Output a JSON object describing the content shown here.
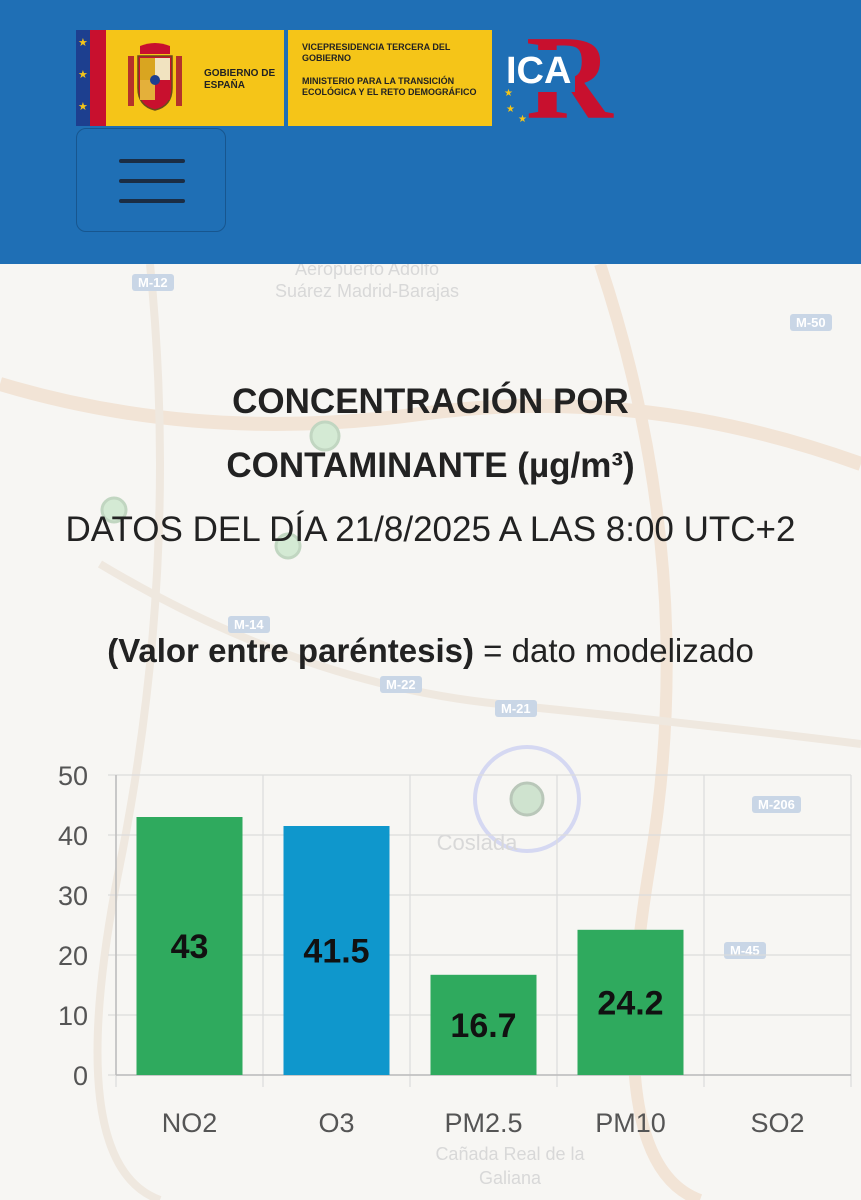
{
  "header": {
    "gov_name": "GOBIERNO DE ESPAÑA",
    "vicepresidency": "VICEPRESIDENCIA TERCERA DEL GOBIERNO",
    "ministry": "MINISTERIO PARA LA TRANSICIÓN ECOLÓGICA Y EL RETO DEMOGRÁFICO",
    "app_logo": "ICA",
    "colors": {
      "header_bg": "#1f6fb5",
      "banner_yellow": "#f5c518",
      "logo_red": "#c8102e"
    }
  },
  "menu": {
    "icon": "hamburger-menu-icon"
  },
  "map": {
    "places": [
      "Aeropuerto Adolfo Suárez Madrid-Barajas",
      "Coslada",
      "Cañada Real de la Galiana"
    ],
    "roads": [
      "M-12",
      "M-50",
      "M-14",
      "M-22",
      "M-21",
      "M-206",
      "M-45"
    ]
  },
  "content": {
    "title": "CONCENTRACIÓN POR CONTAMINANTE (µg/m³)",
    "date_line": "DATOS DEL DÍA 21/8/2025 A LAS 8:00 UTC+2",
    "note_bold": "(Valor entre paréntesis)",
    "note_rest": " = dato modelizado"
  },
  "chart_data": {
    "type": "bar",
    "categories": [
      "NO2",
      "O3",
      "PM2.5",
      "PM10",
      "SO2"
    ],
    "values": [
      43,
      41.5,
      16.7,
      24.2,
      null
    ],
    "value_labels": [
      "43",
      "41.5",
      "16.7",
      "24.2",
      ""
    ],
    "bar_colors": [
      "#2faa5e",
      "#0f97cc",
      "#2faa5e",
      "#2faa5e",
      "#2faa5e"
    ],
    "ylim": [
      0,
      50
    ],
    "yticks": [
      0,
      10,
      20,
      30,
      40,
      50
    ],
    "grid": true,
    "title": "",
    "xlabel": "",
    "ylabel": ""
  }
}
